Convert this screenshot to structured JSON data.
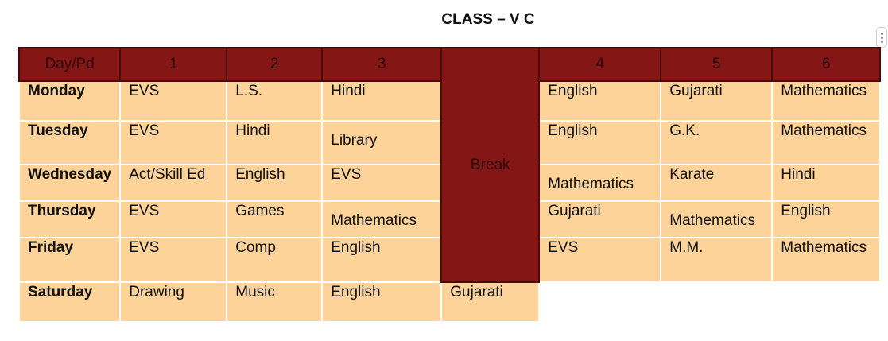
{
  "title": "CLASS – V C",
  "header": [
    "Day/Pd",
    "1",
    "2",
    "3",
    "4",
    "5",
    "6"
  ],
  "break_label": "Break",
  "rows": [
    {
      "day": "Monday",
      "p1": "EVS",
      "p2": "L.S.",
      "p3": "Hindi",
      "p4": "English",
      "p5": "Gujarati",
      "p6": "Mathematics"
    },
    {
      "day": "Tuesday",
      "p1": "EVS",
      "p2": "Hindi",
      "p3": "Library",
      "p4": "English",
      "p5": "G.K.",
      "p6": "Mathematics"
    },
    {
      "day": "Wednesday",
      "p1": "Act/Skill Ed",
      "p2": "English",
      "p3": "EVS",
      "p4": "Mathematics",
      "p5": "Karate",
      "p6": "Hindi"
    },
    {
      "day": "Thursday",
      "p1": "EVS",
      "p2": "Games",
      "p3": "Mathematics",
      "p4": "Gujarati",
      "p5": "Mathematics",
      "p6": "English"
    },
    {
      "day": "Friday",
      "p1": "EVS",
      "p2": "Comp",
      "p3": "English",
      "p4": "EVS",
      "p5": "M.M.",
      "p6": "Mathematics"
    },
    {
      "day": "Saturday",
      "p1": "Drawing",
      "p2": "Music",
      "p3": "English",
      "p4": "Gujarati"
    }
  ]
}
